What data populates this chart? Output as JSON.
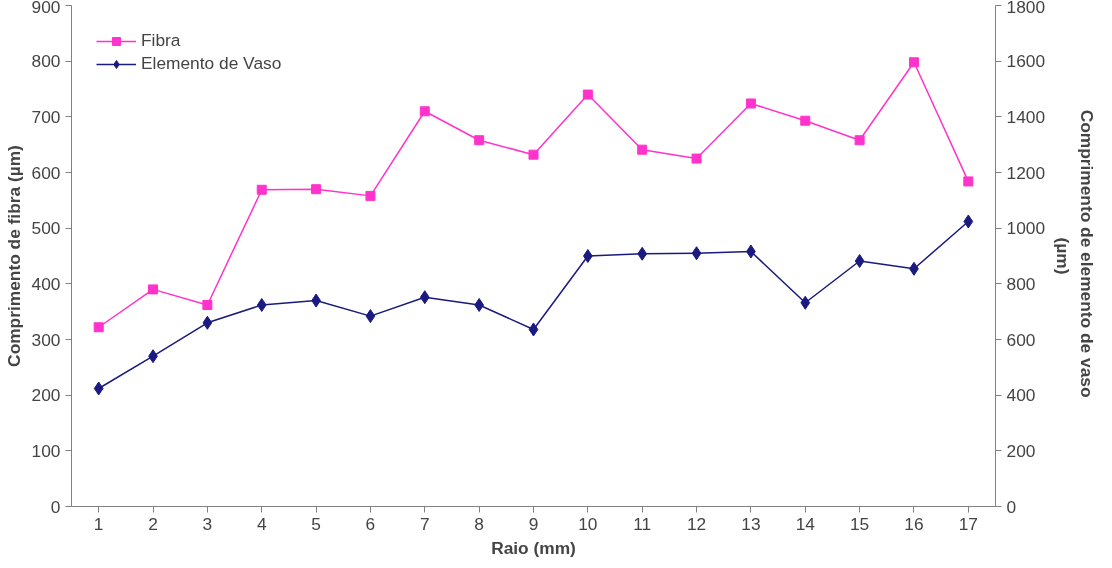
{
  "chart_data": {
    "type": "line",
    "xlabel": "Raio (mm)",
    "ylabel": "Comprimento de fibra (µm)",
    "y2label": "Comprimento  de elemento de vaso\n(µm)",
    "x": [
      1,
      2,
      3,
      4,
      5,
      6,
      7,
      8,
      9,
      10,
      11,
      12,
      13,
      14,
      15,
      16,
      17
    ],
    "xlim": [
      0.5,
      17.5
    ],
    "xticks": [
      1,
      2,
      3,
      4,
      5,
      6,
      7,
      8,
      9,
      10,
      11,
      12,
      13,
      14,
      15,
      16,
      17
    ],
    "ylim": [
      0,
      900
    ],
    "yticks": [
      0,
      100,
      200,
      300,
      400,
      500,
      600,
      700,
      800,
      900
    ],
    "y2lim": [
      0,
      1800
    ],
    "y2ticks": [
      0,
      200,
      400,
      600,
      800,
      1000,
      1200,
      1400,
      1600,
      1800
    ],
    "grid": false,
    "legend": "top left",
    "series": [
      {
        "name": "Fibra",
        "color": "#ff33cc",
        "marker": "square",
        "values": [
          322,
          390,
          362,
          569,
          570,
          558,
          710,
          658,
          632,
          740,
          641,
          625,
          724,
          693,
          658,
          798,
          584
        ]
      },
      {
        "name": "Elemento de Vaso",
        "color": "#1a1a80",
        "marker": "diamond",
        "axis": "y2",
        "values": [
          424,
          540,
          660,
          724,
          740,
          684,
          752,
          724,
          636,
          900,
          908,
          910,
          916,
          732,
          882,
          854,
          1024
        ]
      }
    ]
  }
}
